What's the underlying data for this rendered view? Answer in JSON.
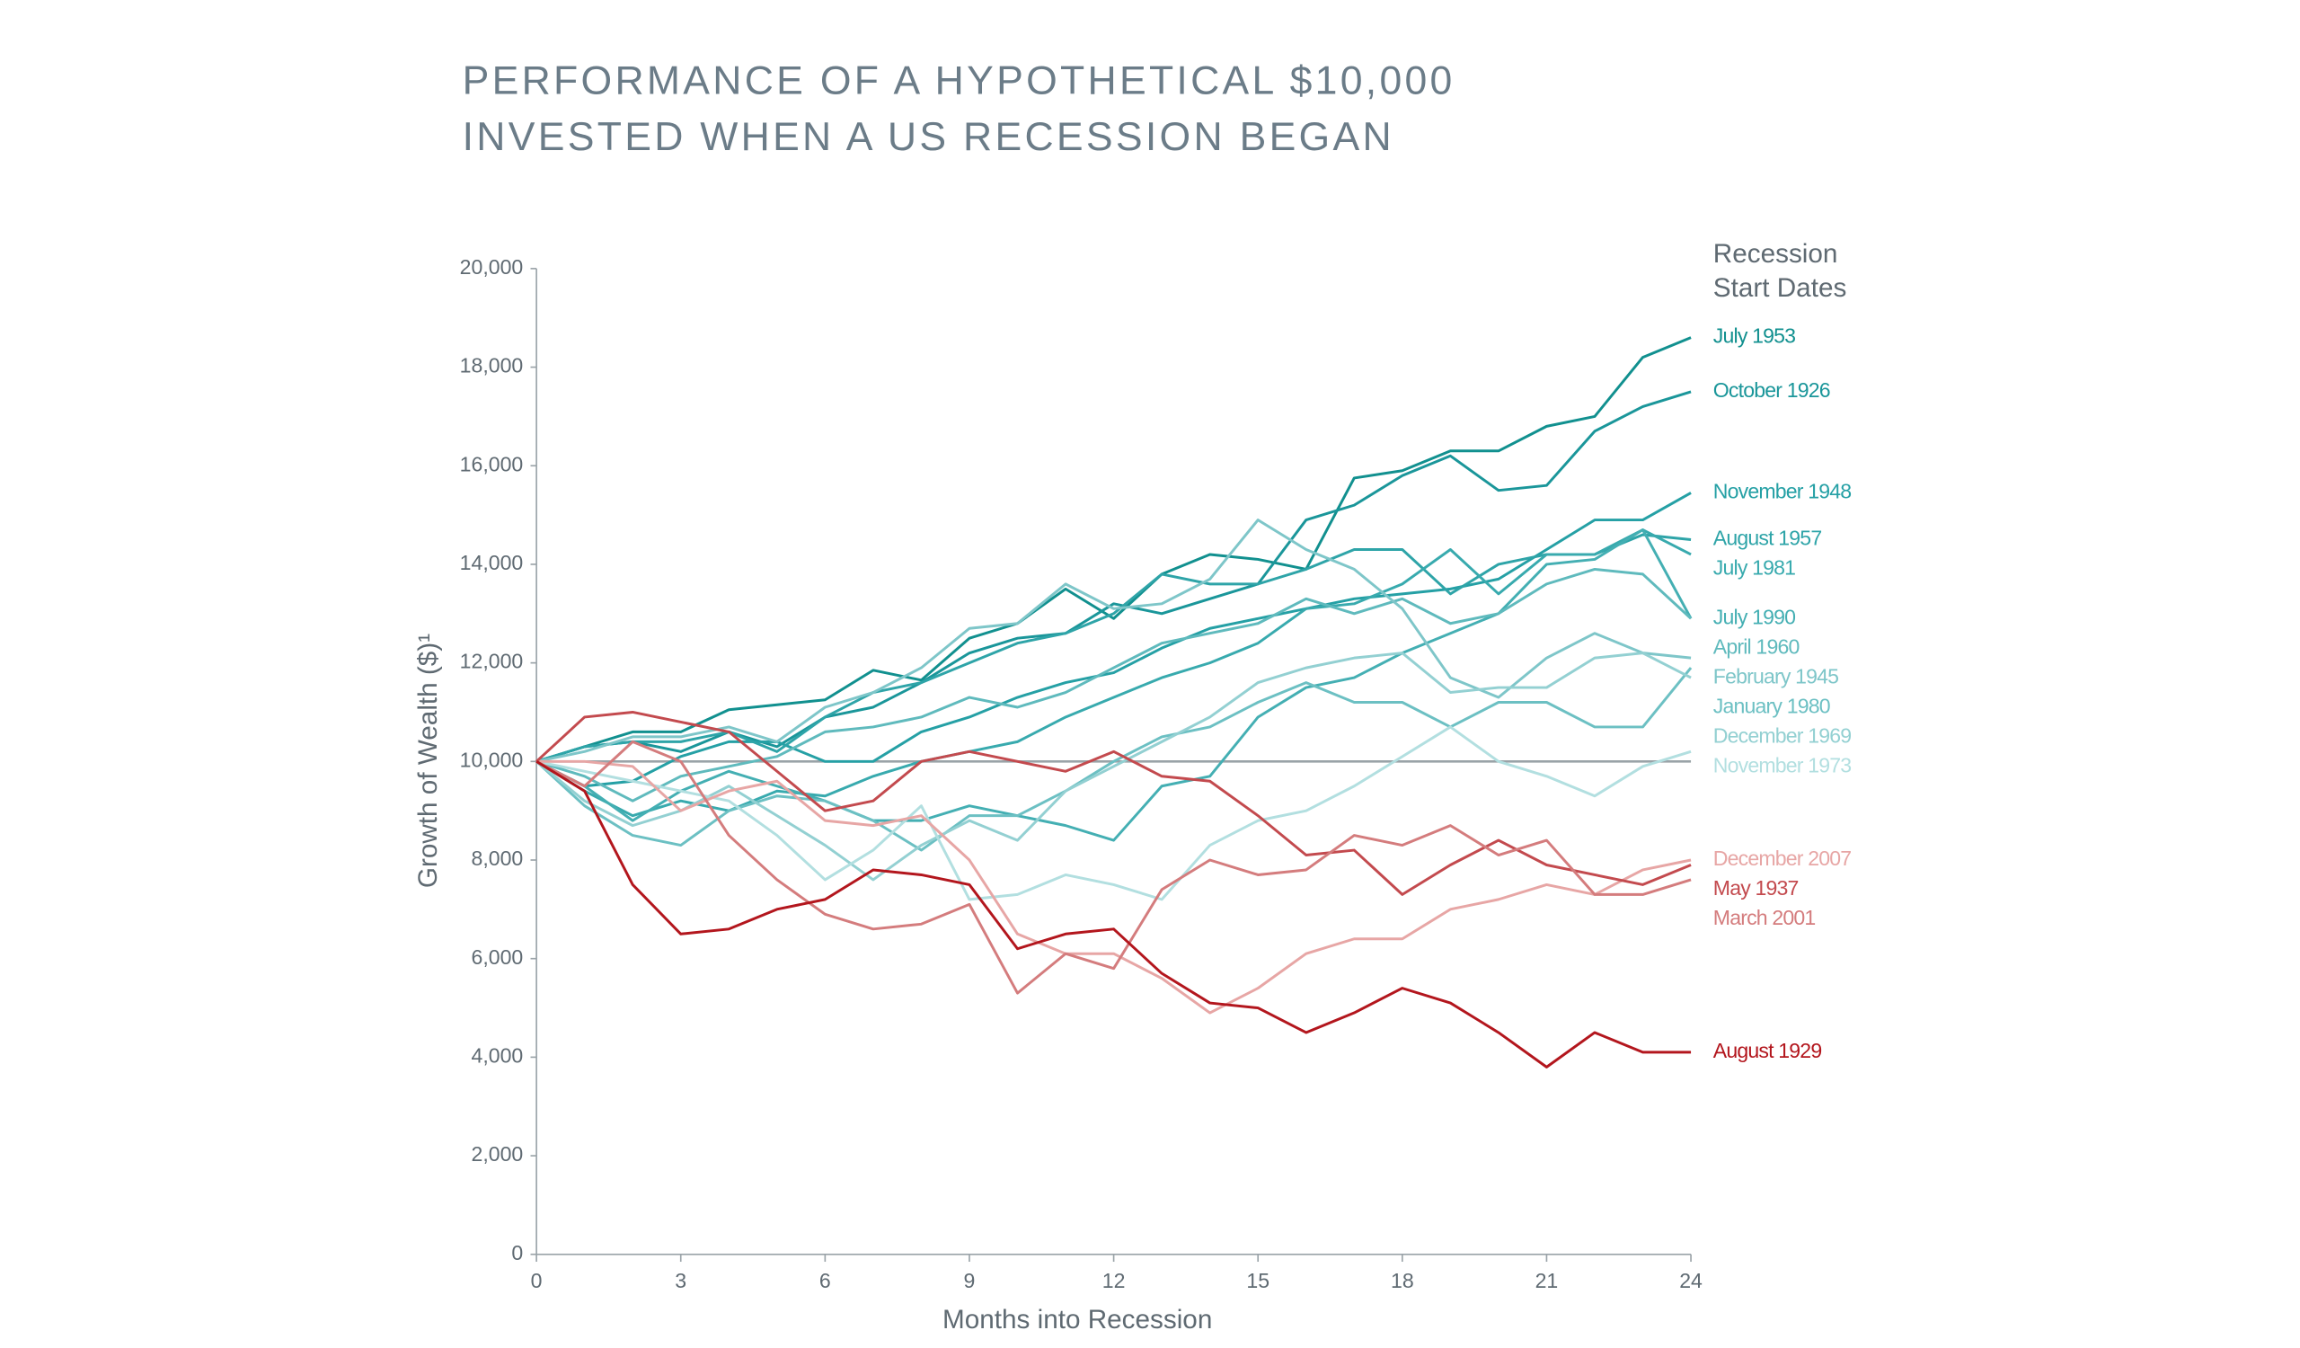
{
  "chart_data": {
    "type": "line",
    "title": [
      "PERFORMANCE OF A HYPOTHETICAL $10,000",
      "INVESTED WHEN A US RECESSION BEGAN"
    ],
    "xlabel": "Months into Recession",
    "ylabel": "Growth of Wealth ($)¹",
    "legend_title": [
      "Recession",
      "Start Dates"
    ],
    "x": [
      0,
      1,
      2,
      3,
      4,
      5,
      6,
      7,
      8,
      9,
      10,
      11,
      12,
      13,
      14,
      15,
      16,
      17,
      18,
      19,
      20,
      21,
      22,
      23,
      24
    ],
    "xlim": [
      0,
      24
    ],
    "xticks": [
      0,
      3,
      6,
      9,
      12,
      15,
      18,
      21,
      24
    ],
    "ylim": [
      0,
      20000
    ],
    "yticks": [
      0,
      {
        "value": 2000,
        "label": "2,000"
      },
      {
        "value": 4000,
        "label": "4,000"
      },
      {
        "value": 6000,
        "label": "6,000"
      },
      {
        "value": 8000,
        "label": "8,000"
      },
      {
        "value": 10000,
        "label": "10,000"
      },
      {
        "value": 12000,
        "label": "12,000"
      },
      {
        "value": 14000,
        "label": "14,000"
      },
      {
        "value": 16000,
        "label": "16,000"
      },
      {
        "value": 18000,
        "label": "18,000"
      },
      {
        "value": 20000,
        "label": "20,000"
      }
    ],
    "reference_line": 10000,
    "reference_color": "#9aa3a8",
    "series": [
      {
        "name": "July 1953",
        "color": "#11908f",
        "values": [
          10000,
          10300,
          10600,
          10600,
          11050,
          11150,
          11250,
          11850,
          11650,
          12500,
          12800,
          13500,
          12900,
          13800,
          14200,
          14100,
          13900,
          15750,
          15900,
          16300,
          16300,
          16800,
          17000,
          18200,
          18600
        ]
      },
      {
        "name": "October 1926",
        "color": "#1a969a",
        "values": [
          10000,
          10300,
          10400,
          10200,
          10600,
          10300,
          10900,
          11100,
          11600,
          12200,
          12500,
          12600,
          13200,
          13000,
          13300,
          13600,
          14900,
          15200,
          15800,
          16200,
          15500,
          15600,
          16700,
          17200,
          17500
        ]
      },
      {
        "name": "November 1948",
        "color": "#25a0a5",
        "values": [
          10000,
          9500,
          9600,
          10100,
          10400,
          10400,
          10000,
          10000,
          10600,
          10900,
          11300,
          11600,
          11800,
          12300,
          12700,
          12900,
          13100,
          13300,
          13400,
          13500,
          13700,
          14300,
          14900,
          14900,
          15450
        ]
      },
      {
        "name": "August 1957",
        "color": "#2ea4a8",
        "values": [
          10000,
          10300,
          10400,
          10400,
          10600,
          10200,
          10900,
          11400,
          11600,
          12000,
          12400,
          12600,
          13000,
          13800,
          13600,
          13600,
          13900,
          14300,
          14300,
          13400,
          14000,
          14200,
          14200,
          14600,
          14500
        ]
      },
      {
        "name": "July 1981",
        "color": "#38aaae",
        "values": [
          10000,
          9400,
          8900,
          9200,
          9000,
          9400,
          9300,
          9700,
          10000,
          10200,
          10400,
          10900,
          11300,
          11700,
          12000,
          12400,
          13100,
          13200,
          13600,
          14300,
          13400,
          14200,
          14200,
          14700,
          14200
        ]
      },
      {
        "name": "July 1990",
        "color": "#44afb3",
        "values": [
          10000,
          9500,
          8800,
          9400,
          9800,
          9500,
          9200,
          8800,
          8800,
          9100,
          8900,
          8700,
          8400,
          9500,
          9700,
          10900,
          11500,
          11700,
          12200,
          12600,
          13000,
          14000,
          14100,
          14700,
          12900
        ]
      },
      {
        "name": "April 1960",
        "color": "#5fbabd",
        "values": [
          10000,
          9700,
          9200,
          9700,
          9900,
          10100,
          10600,
          10700,
          10900,
          11300,
          11100,
          11400,
          11900,
          12400,
          12600,
          12800,
          13300,
          13000,
          13300,
          12800,
          13000,
          13600,
          13900,
          13800,
          12900
        ]
      },
      {
        "name": "February 1945",
        "color": "#7ec6c9",
        "values": [
          10000,
          10200,
          10500,
          10500,
          10700,
          10400,
          11100,
          11400,
          11900,
          12700,
          12800,
          13600,
          13100,
          13200,
          13700,
          14900,
          14300,
          13900,
          13100,
          11700,
          11300,
          12100,
          12600,
          12200,
          12100
        ]
      },
      {
        "name": "January 1980",
        "color": "#6cc0c3",
        "values": [
          10000,
          9100,
          8500,
          8300,
          9000,
          9300,
          9200,
          8800,
          8200,
          8900,
          8900,
          9400,
          10000,
          10500,
          10700,
          11200,
          11600,
          11200,
          11200,
          10700,
          11200,
          11200,
          10700,
          10700,
          11900
        ]
      },
      {
        "name": "December 1969",
        "color": "#93d0d2",
        "values": [
          10000,
          9200,
          8700,
          9000,
          9500,
          8900,
          8300,
          7600,
          8300,
          8800,
          8400,
          9400,
          9900,
          10400,
          10900,
          11600,
          11900,
          12100,
          12200,
          11400,
          11500,
          11500,
          12100,
          12200,
          11700
        ]
      },
      {
        "name": "November 1973",
        "color": "#b2dfe0",
        "values": [
          10000,
          9800,
          9600,
          9400,
          9200,
          8500,
          7600,
          8200,
          9100,
          7200,
          7300,
          7700,
          7500,
          7200,
          8300,
          8800,
          9000,
          9500,
          10100,
          10700,
          10000,
          9700,
          9300,
          9900,
          10200
        ]
      },
      {
        "name": "December 2007",
        "color": "#e7a6a5",
        "values": [
          10000,
          10000,
          9900,
          9000,
          9400,
          9600,
          8800,
          8700,
          8900,
          8000,
          6500,
          6100,
          6100,
          5600,
          4900,
          5400,
          6100,
          6400,
          6400,
          7000,
          7200,
          7500,
          7300,
          7800,
          8000
        ]
      },
      {
        "name": "May 1937",
        "color": "#c34a4e",
        "values": [
          10000,
          10900,
          11000,
          10800,
          10600,
          9800,
          9000,
          9200,
          10000,
          10200,
          10000,
          9800,
          10200,
          9700,
          9600,
          8900,
          8100,
          8200,
          7300,
          7900,
          8400,
          7900,
          7700,
          7500,
          7900
        ]
      },
      {
        "name": "March 2001",
        "color": "#d47c7d",
        "values": [
          10000,
          9500,
          10400,
          10000,
          8500,
          7600,
          6900,
          6600,
          6700,
          7100,
          5300,
          6100,
          5800,
          7400,
          8000,
          7700,
          7800,
          8500,
          8300,
          8700,
          8100,
          8400,
          7300,
          7300,
          7600
        ]
      },
      {
        "name": "August 1929",
        "color": "#b3161d",
        "values": [
          10000,
          9400,
          7500,
          6500,
          6600,
          7000,
          7200,
          7800,
          7700,
          7500,
          6200,
          6500,
          6600,
          5700,
          5100,
          5000,
          4500,
          4900,
          5400,
          5100,
          4500,
          3800,
          4500,
          4100,
          4100
        ]
      }
    ]
  }
}
